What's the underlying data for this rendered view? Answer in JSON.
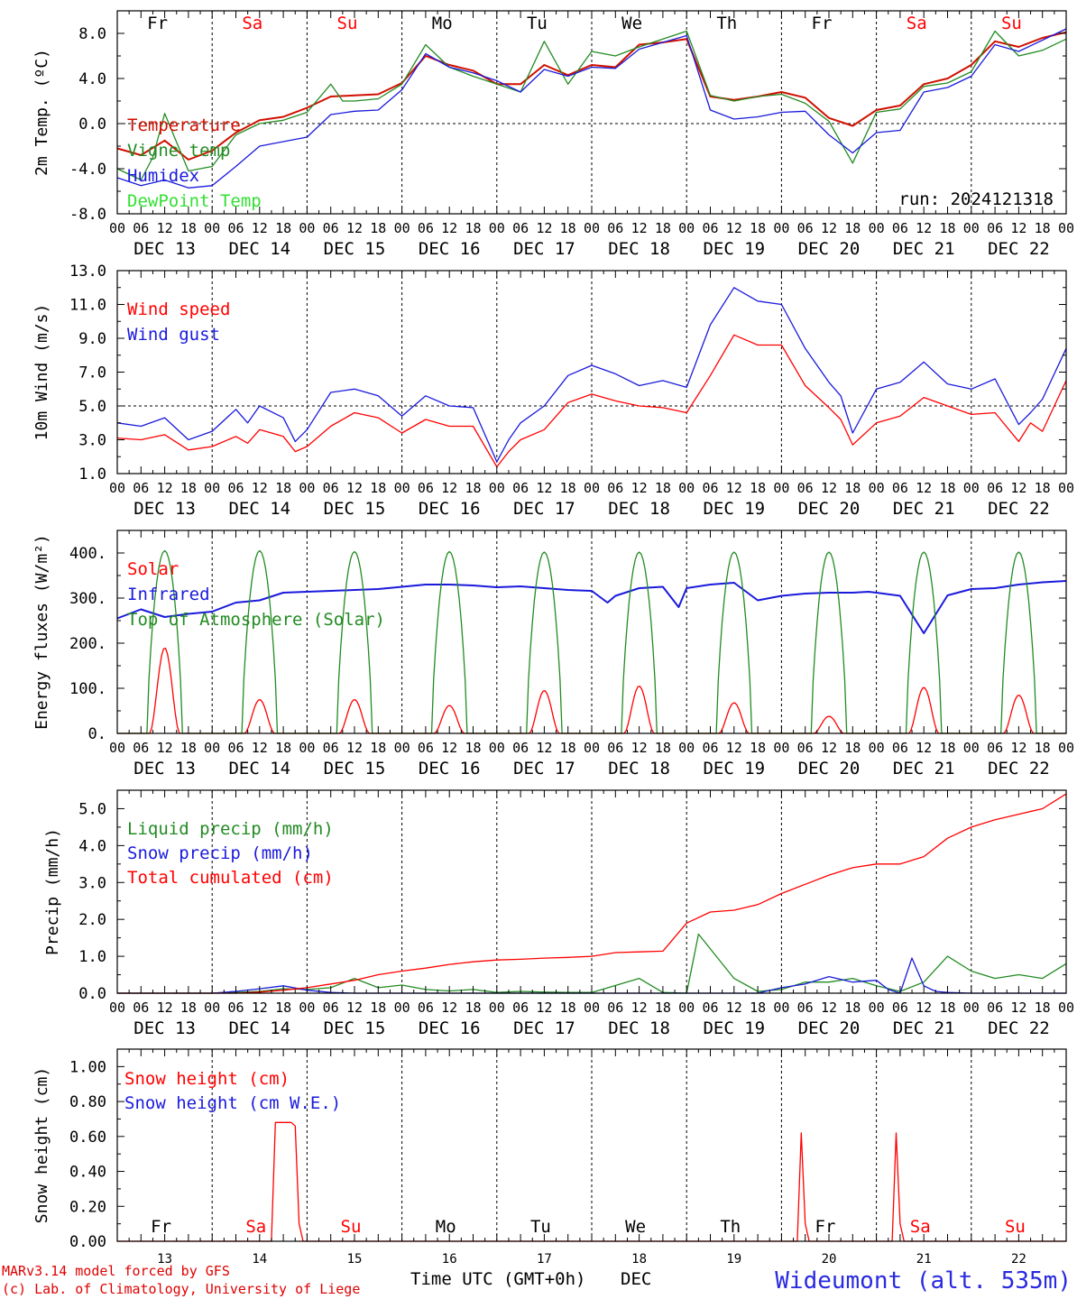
{
  "run_label": "run: 2024121318",
  "day_names": [
    "Fr",
    "Sa",
    "Su",
    "Mo",
    "Tu",
    "We",
    "Th",
    "Fr",
    "Sa",
    "Su"
  ],
  "weekend_days": [
    1,
    2,
    8,
    9
  ],
  "date_labels": [
    "DEC 13",
    "DEC 14",
    "DEC 15",
    "DEC 16",
    "DEC 17",
    "DEC 18",
    "DEC 19",
    "DEC 20",
    "DEC 21",
    "DEC 22"
  ],
  "hour_ticks": [
    "00",
    "06",
    "12",
    "18"
  ],
  "bottom_day_numbers": [
    "13",
    "14",
    "15",
    "16",
    "17",
    "18",
    "19",
    "20",
    "21",
    "22"
  ],
  "bottom_axis_label": "Time UTC (GMT+0h)",
  "bottom_month": "DEC",
  "credit_line1": "MARv3.14 model forced by GFS",
  "credit_line2": "(c) Lab. of Climatology, University of Liege",
  "station": "Wideumont (alt. 535m)",
  "colors": {
    "red": "#ff0000",
    "dark_red": "#d01000",
    "green": "#228b22",
    "blue": "#1a1adc",
    "lime": "#33e033",
    "station": "#2a2ae0"
  },
  "chart_data": [
    {
      "type": "line",
      "ylabel": "2m Temp. (ºC)",
      "ylim": [
        -8,
        10
      ],
      "y_ticks": [
        "-8.0",
        "-4.0",
        "0.0",
        "4.0",
        "8.0"
      ],
      "x_unit": "hours since 2024-12-13 00:00 UTC",
      "xlim": [
        0,
        240
      ],
      "reference_line": 0,
      "series": [
        {
          "name": "Temperature",
          "color": "#d01000",
          "x": [
            0,
            6,
            12,
            18,
            24,
            30,
            36,
            42,
            48,
            54,
            60,
            66,
            72,
            78,
            84,
            90,
            96,
            102,
            108,
            114,
            120,
            126,
            132,
            138,
            144,
            150,
            156,
            162,
            168,
            174,
            180,
            186,
            192,
            198,
            204,
            210,
            216,
            222,
            228,
            234,
            240
          ],
          "values": [
            -2.2,
            -2.8,
            -1.5,
            -3.2,
            -2.4,
            -0.8,
            0.3,
            0.6,
            1.4,
            2.4,
            2.5,
            2.6,
            3.6,
            6.0,
            5.2,
            4.7,
            3.5,
            3.5,
            5.2,
            4.3,
            5.2,
            5.0,
            7.0,
            7.2,
            7.5,
            2.4,
            2.1,
            2.4,
            2.8,
            2.3,
            0.5,
            -0.2,
            1.2,
            1.6,
            3.5,
            4.0,
            5.2,
            7.3,
            6.8,
            7.6,
            8.1
          ]
        },
        {
          "name": "Vigne temp",
          "color": "#228b22",
          "x": [
            0,
            6,
            9,
            12,
            18,
            24,
            30,
            36,
            42,
            48,
            54,
            57,
            60,
            66,
            72,
            78,
            84,
            90,
            96,
            102,
            108,
            114,
            120,
            126,
            132,
            138,
            144,
            150,
            156,
            162,
            168,
            174,
            180,
            186,
            192,
            198,
            204,
            210,
            216,
            222,
            228,
            234,
            240
          ],
          "values": [
            -4.0,
            -5.0,
            -3.0,
            0.9,
            -4.2,
            -3.8,
            -1.0,
            0.0,
            0.3,
            1.0,
            3.5,
            2.0,
            2.0,
            2.2,
            3.5,
            7.0,
            5.0,
            4.2,
            3.5,
            2.8,
            7.3,
            3.5,
            6.4,
            6.0,
            6.8,
            7.5,
            8.2,
            2.5,
            2.0,
            2.4,
            2.6,
            1.8,
            0.2,
            -3.5,
            1.0,
            1.3,
            3.3,
            3.6,
            4.6,
            8.2,
            6.0,
            6.5,
            7.5
          ]
        },
        {
          "name": "Humidex",
          "color": "#1a1adc",
          "x": [
            0,
            6,
            12,
            18,
            24,
            30,
            36,
            42,
            48,
            54,
            60,
            66,
            72,
            78,
            84,
            90,
            96,
            102,
            108,
            114,
            120,
            126,
            132,
            138,
            144,
            150,
            156,
            162,
            168,
            174,
            180,
            186,
            192,
            198,
            204,
            210,
            216,
            222,
            228,
            234,
            240
          ],
          "values": [
            -4.8,
            -5.5,
            -5.0,
            -5.7,
            -5.5,
            -3.8,
            -2.0,
            -1.6,
            -1.2,
            0.8,
            1.1,
            1.2,
            3.0,
            6.2,
            5.0,
            4.5,
            3.8,
            2.8,
            4.8,
            4.2,
            5.0,
            4.9,
            6.6,
            7.2,
            7.8,
            1.2,
            0.4,
            0.6,
            1.0,
            1.1,
            -1.0,
            -2.6,
            -0.8,
            -0.6,
            2.8,
            3.2,
            4.2,
            7.0,
            6.4,
            7.4,
            8.4
          ]
        },
        {
          "name": "DewPoint Temp",
          "color": "#33e033",
          "x": [],
          "values": []
        }
      ]
    },
    {
      "type": "line",
      "ylabel": "10m Wind (m/s)",
      "ylim": [
        1,
        13
      ],
      "y_ticks": [
        "1.0",
        "3.0",
        "5.0",
        "7.0",
        "9.0",
        "11.0",
        "13.0"
      ],
      "x_unit": "hours since 2024-12-13 00:00 UTC",
      "xlim": [
        0,
        240
      ],
      "reference_line": 5,
      "series": [
        {
          "name": "Wind speed",
          "color": "#ff0000",
          "x": [
            0,
            6,
            12,
            18,
            24,
            30,
            33,
            36,
            42,
            45,
            48,
            54,
            60,
            66,
            72,
            78,
            84,
            90,
            96,
            99,
            102,
            108,
            114,
            120,
            126,
            132,
            138,
            144,
            150,
            156,
            162,
            168,
            174,
            180,
            183,
            186,
            192,
            198,
            204,
            210,
            216,
            222,
            228,
            231,
            234,
            240
          ],
          "values": [
            3.1,
            3.0,
            3.3,
            2.4,
            2.6,
            3.2,
            2.8,
            3.6,
            3.2,
            2.3,
            2.6,
            3.8,
            4.6,
            4.3,
            3.4,
            4.2,
            3.8,
            3.8,
            1.4,
            2.3,
            3.0,
            3.6,
            5.2,
            5.7,
            5.3,
            5.0,
            4.9,
            4.6,
            6.8,
            9.2,
            8.6,
            8.6,
            6.2,
            4.9,
            4.2,
            2.7,
            4.0,
            4.4,
            5.5,
            5.0,
            4.5,
            4.6,
            2.9,
            4.0,
            3.5,
            6.5
          ]
        },
        {
          "name": "Wind gust",
          "color": "#1a1adc",
          "x": [
            0,
            6,
            12,
            18,
            24,
            30,
            33,
            36,
            42,
            45,
            48,
            54,
            60,
            66,
            72,
            78,
            84,
            90,
            96,
            99,
            102,
            108,
            114,
            120,
            126,
            132,
            138,
            144,
            150,
            156,
            162,
            168,
            174,
            180,
            183,
            186,
            192,
            198,
            204,
            210,
            216,
            222,
            228,
            231,
            234,
            240
          ],
          "values": [
            4.0,
            3.8,
            4.3,
            3.0,
            3.5,
            4.8,
            4.0,
            5.0,
            4.3,
            2.9,
            3.6,
            5.8,
            6.0,
            5.6,
            4.4,
            5.6,
            5.0,
            4.9,
            1.7,
            3.0,
            4.0,
            5.0,
            6.8,
            7.4,
            6.9,
            6.2,
            6.5,
            6.1,
            9.8,
            12.0,
            11.2,
            11.0,
            8.4,
            6.4,
            5.6,
            3.4,
            6.0,
            6.4,
            7.6,
            6.3,
            6.0,
            6.6,
            3.9,
            4.6,
            5.4,
            8.4
          ]
        }
      ]
    },
    {
      "type": "line",
      "ylabel": "Energy fluxes (W/m²)",
      "ylim": [
        0,
        450
      ],
      "y_ticks": [
        "0.",
        "100.",
        "200.",
        "300.",
        "400."
      ],
      "x_unit": "hours since 2024-12-13 00:00 UTC",
      "xlim": [
        0,
        240
      ],
      "series": [
        {
          "name": "Solar",
          "color": "#ff0000",
          "daily_peak_hour": 12,
          "daily_peaks": [
            190,
            75,
            75,
            62,
            95,
            105,
            68,
            38,
            102,
            85
          ]
        },
        {
          "name": "Infrared",
          "color": "#1a1adc",
          "x": [
            0,
            6,
            12,
            18,
            24,
            30,
            36,
            42,
            48,
            54,
            60,
            66,
            72,
            78,
            84,
            90,
            96,
            102,
            108,
            114,
            120,
            124,
            126,
            132,
            138,
            142,
            144,
            150,
            156,
            162,
            168,
            174,
            180,
            186,
            190,
            192,
            198,
            204,
            210,
            216,
            222,
            228,
            234,
            240
          ],
          "values": [
            255,
            275,
            258,
            265,
            270,
            290,
            295,
            312,
            314,
            316,
            318,
            320,
            325,
            330,
            330,
            328,
            324,
            326,
            322,
            318,
            316,
            290,
            305,
            322,
            325,
            280,
            322,
            330,
            334,
            295,
            305,
            310,
            312,
            312,
            314,
            312,
            305,
            222,
            306,
            320,
            322,
            330,
            335,
            338
          ]
        },
        {
          "name": "Top of Atmosphere (Solar)",
          "color": "#228b22",
          "daily_peak_hour": 12,
          "daily_peaks": [
            405,
            405,
            403,
            403,
            402,
            402,
            402,
            402,
            402,
            402
          ]
        }
      ]
    },
    {
      "type": "line",
      "ylabel": "Precip (mm/h)",
      "ylim": [
        0,
        5.5
      ],
      "y_ticks": [
        "0.0",
        "1.0",
        "2.0",
        "3.0",
        "4.0",
        "5.0"
      ],
      "x_unit": "hours since 2024-12-13 00:00 UTC",
      "xlim": [
        0,
        240
      ],
      "series": [
        {
          "name": "Liquid precip (mm/h)",
          "color": "#228b22",
          "x": [
            0,
            24,
            30,
            36,
            42,
            48,
            54,
            60,
            66,
            72,
            78,
            84,
            90,
            96,
            102,
            108,
            114,
            120,
            132,
            138,
            144,
            147,
            150,
            156,
            162,
            168,
            174,
            180,
            186,
            192,
            198,
            204,
            210,
            216,
            222,
            228,
            234,
            240
          ],
          "values": [
            0,
            0,
            0.02,
            0.05,
            0.12,
            0.1,
            0.15,
            0.4,
            0.15,
            0.22,
            0.1,
            0.06,
            0.1,
            0.02,
            0.05,
            0.03,
            0.02,
            0.02,
            0.4,
            0.02,
            0,
            1.6,
            1.2,
            0.4,
            0.05,
            0.1,
            0.3,
            0.3,
            0.4,
            0.2,
            0.05,
            0.3,
            1.0,
            0.6,
            0.4,
            0.5,
            0.4,
            0.8
          ]
        },
        {
          "name": "Snow precip (mm/h)",
          "color": "#1a1adc",
          "x": [
            0,
            24,
            30,
            36,
            42,
            48,
            54,
            60,
            150,
            162,
            168,
            174,
            180,
            186,
            192,
            195,
            198,
            201,
            204,
            207,
            210,
            216,
            240
          ],
          "values": [
            0,
            0,
            0.05,
            0.12,
            0.2,
            0.08,
            0.02,
            0,
            0,
            0,
            0.15,
            0.25,
            0.45,
            0.3,
            0.35,
            0.1,
            0,
            0.95,
            0.2,
            0.05,
            0.02,
            0,
            0
          ]
        },
        {
          "name": "Total cumulated (cm)",
          "color": "#ff0000",
          "x": [
            0,
            30,
            36,
            42,
            48,
            54,
            60,
            66,
            72,
            78,
            84,
            90,
            96,
            102,
            108,
            114,
            120,
            126,
            132,
            138,
            144,
            150,
            156,
            162,
            168,
            174,
            180,
            186,
            192,
            198,
            204,
            210,
            216,
            222,
            228,
            234,
            240
          ],
          "values": [
            0,
            0,
            0.03,
            0.08,
            0.15,
            0.25,
            0.35,
            0.5,
            0.6,
            0.68,
            0.78,
            0.85,
            0.9,
            0.92,
            0.95,
            0.97,
            1.0,
            1.1,
            1.12,
            1.14,
            1.9,
            2.2,
            2.25,
            2.4,
            2.7,
            2.95,
            3.2,
            3.4,
            3.5,
            3.5,
            3.7,
            4.2,
            4.5,
            4.7,
            4.85,
            5.0,
            5.4
          ]
        }
      ]
    },
    {
      "type": "line",
      "ylabel": "Snow height (cm)",
      "ylim": [
        0,
        1.1
      ],
      "y_ticks": [
        "0.00",
        "0.20",
        "0.40",
        "0.60",
        "0.80",
        "1.00"
      ],
      "x_unit": "hours since 2024-12-13 00:00 UTC",
      "xlim": [
        0,
        240
      ],
      "series": [
        {
          "name": "Snow height (cm)",
          "color": "#ff0000",
          "x": [
            0,
            39,
            40,
            44,
            45,
            46,
            47,
            48,
            49,
            50,
            51,
            52,
            53,
            54,
            55,
            56,
            57,
            58,
            59,
            60,
            61,
            150,
            172,
            173,
            174,
            175,
            196,
            197,
            198,
            199,
            240
          ],
          "values": [
            0,
            0,
            0.68,
            0.68,
            0.66,
            0.1,
            0,
            0,
            0,
            0,
            0,
            0,
            0,
            0,
            0,
            0,
            0,
            0,
            0,
            0,
            0,
            0,
            0,
            0.62,
            0.1,
            0,
            0,
            0.62,
            0.1,
            0,
            0
          ]
        },
        {
          "name": "Snow height (cm W.E.)",
          "color": "#1a1adc",
          "x": [],
          "values": []
        }
      ]
    }
  ]
}
